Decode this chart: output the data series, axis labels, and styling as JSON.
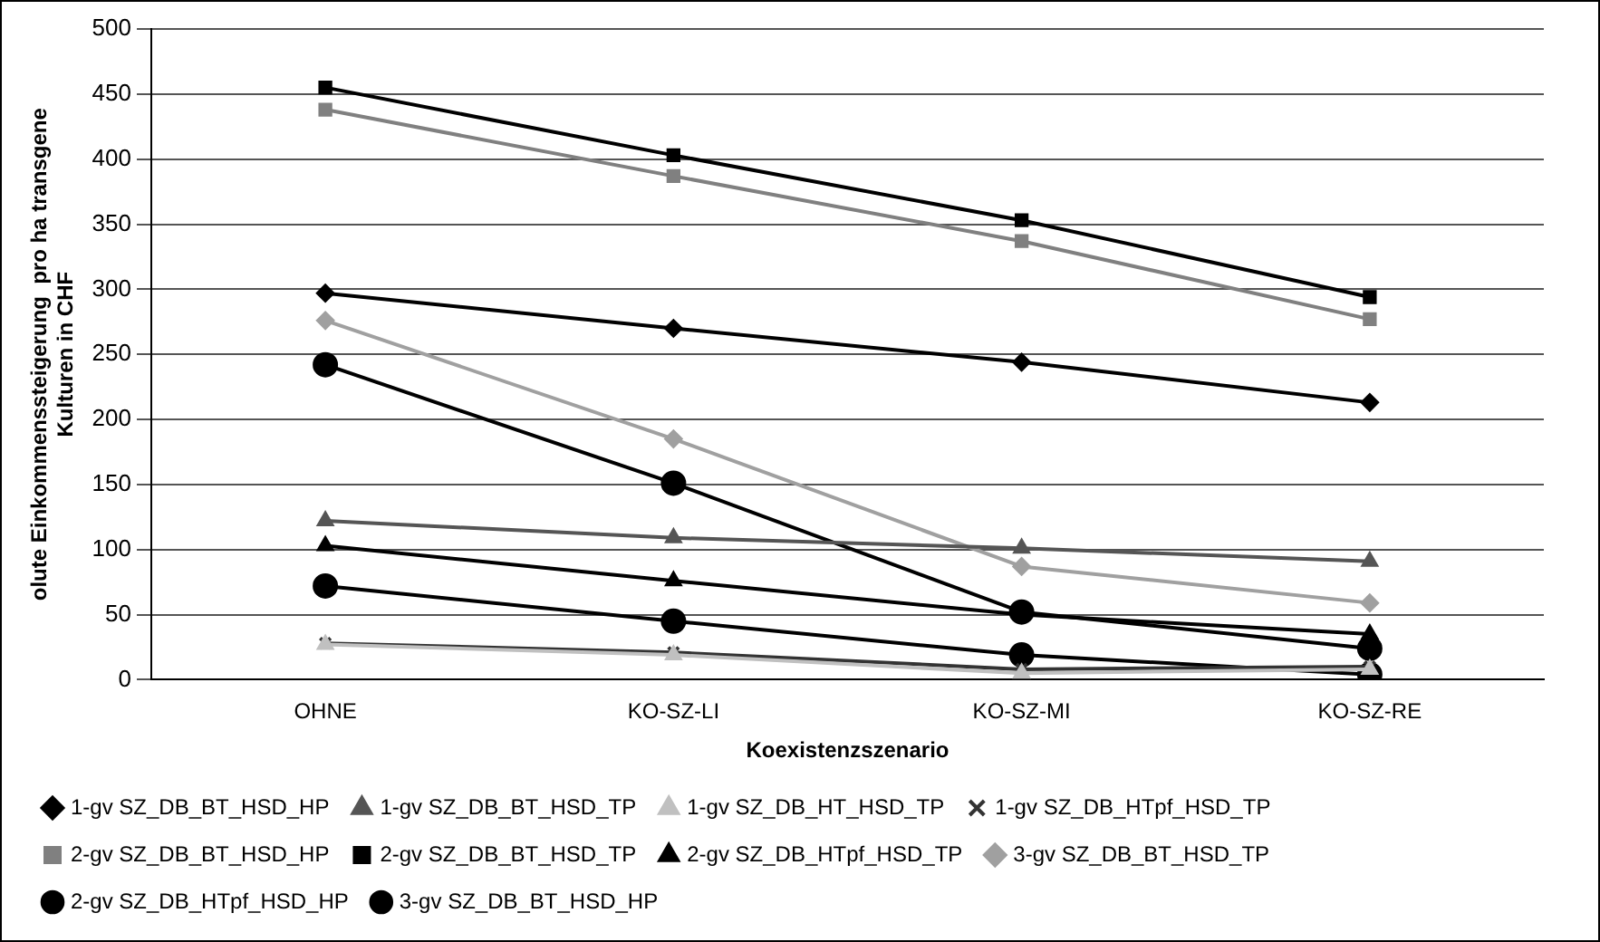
{
  "chart_data": {
    "type": "line",
    "xlabel": "Koexistenzszenario",
    "ylabel": "olute Einkommenssteigerung  pro ha transgene\nKulturen in CHF",
    "categories": [
      "OHNE",
      "KO-SZ-LI",
      "KO-SZ-MI",
      "KO-SZ-RE"
    ],
    "ylim": [
      0,
      500
    ],
    "yticks": [
      0,
      50,
      100,
      150,
      200,
      250,
      300,
      350,
      400,
      450,
      500
    ],
    "grid": "y",
    "legend": "bottom",
    "series": [
      {
        "name": "1-gv SZ_DB_BT_HSD_HP",
        "color": "#000000",
        "marker": "diamond",
        "values": [
          297,
          270,
          244,
          213
        ]
      },
      {
        "name": "1-gv SZ_DB_BT_HSD_TP",
        "color": "#555555",
        "marker": "triangle",
        "values": [
          122,
          109,
          101,
          91
        ]
      },
      {
        "name": "1-gv SZ_DB_HT_HSD_TP",
        "color": "#c0c0c0",
        "marker": "triangle",
        "values": [
          27,
          19,
          5,
          8
        ]
      },
      {
        "name": "1-gv SZ_DB_HTpf_HSD_TP",
        "color": "#333333",
        "marker": "cross",
        "values": [
          28,
          21,
          8,
          10
        ]
      },
      {
        "name": "2-gv SZ_DB_BT_HSD_HP",
        "color": "#808080",
        "marker": "square",
        "values": [
          438,
          387,
          337,
          277
        ]
      },
      {
        "name": "2-gv SZ_DB_HTpf_HSD_HP",
        "color": "#000000",
        "marker": "circle",
        "values": [
          72,
          45,
          19,
          4
        ]
      },
      {
        "name": "2-gv SZ_DB_BT_HSD_TP",
        "color": "#000000",
        "marker": "square",
        "values": [
          455,
          403,
          353,
          294
        ]
      },
      {
        "name": "2-gv SZ_DB_HTpf_HSD_TP",
        "color": "#000000",
        "marker": "triangle",
        "values": [
          103,
          76,
          50,
          35
        ]
      },
      {
        "name": "3-gv SZ_DB_BT_HSD_HP",
        "color": "#000000",
        "marker": "circle",
        "values": [
          242,
          151,
          52,
          24
        ]
      },
      {
        "name": "3-gv SZ_DB_BT_HSD_TP",
        "color": "#a0a0a0",
        "marker": "diamond",
        "values": [
          276,
          185,
          87,
          59
        ]
      }
    ]
  }
}
